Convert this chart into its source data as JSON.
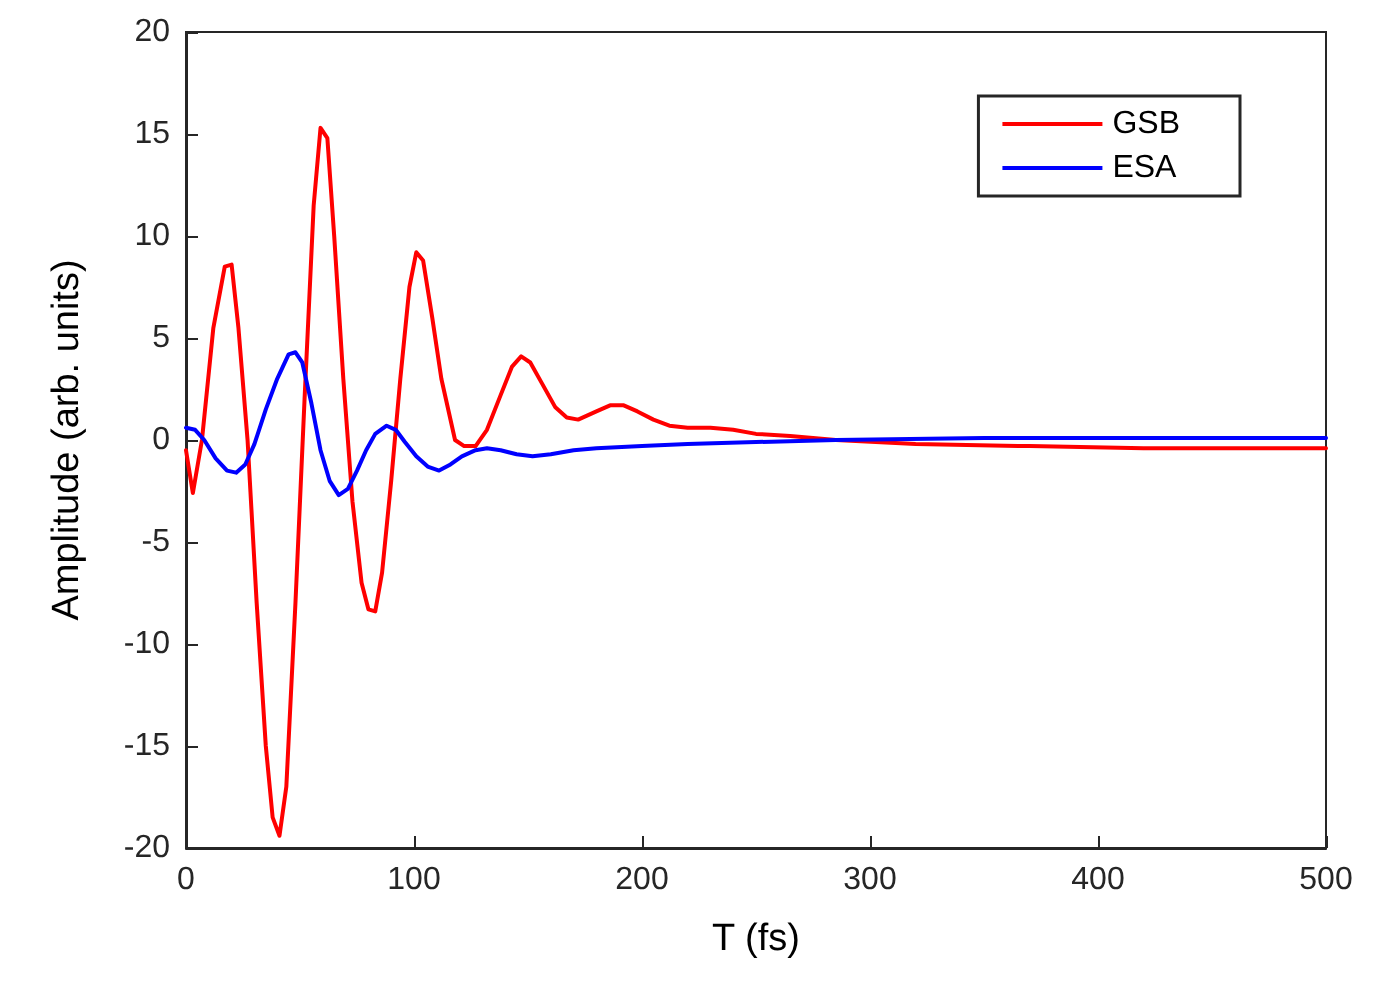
{
  "chart_data": {
    "type": "line",
    "xlabel": "T (fs)",
    "ylabel": "Amplitude (arb. units)",
    "xlim": [
      0,
      500
    ],
    "xticks": [
      0,
      100,
      200,
      300,
      400,
      500
    ],
    "ylim": [
      -20,
      20
    ],
    "yticks": [
      -20,
      -15,
      -10,
      -5,
      0,
      5,
      10,
      15,
      20
    ],
    "grid": false,
    "legend": "top right",
    "marker": "none",
    "line_style": "solid",
    "series": [
      {
        "name": "GSB",
        "color": "#ff0000",
        "x": [
          0,
          3,
          7,
          12,
          17,
          20,
          23,
          27,
          31,
          35,
          38,
          41,
          44,
          48,
          52,
          56,
          59,
          62,
          65,
          69,
          73,
          77,
          80,
          83,
          86,
          90,
          94,
          98,
          101,
          104,
          108,
          112,
          118,
          122,
          127,
          132,
          138,
          143,
          147,
          151,
          156,
          162,
          167,
          172,
          180,
          186,
          192,
          198,
          205,
          212,
          220,
          230,
          240,
          250,
          265,
          285,
          320,
          370,
          420,
          500
        ],
        "values": [
          -0.5,
          -2.6,
          0,
          5.5,
          8.5,
          8.6,
          5.5,
          0,
          -8,
          -15,
          -18.5,
          -19.4,
          -17,
          -8,
          2,
          11.5,
          15.3,
          14.8,
          10,
          3,
          -3,
          -7,
          -8.3,
          -8.4,
          -6.5,
          -2,
          3,
          7.5,
          9.2,
          8.8,
          6,
          3,
          0,
          -0.3,
          -0.3,
          0.5,
          2.2,
          3.6,
          4.1,
          3.8,
          2.8,
          1.6,
          1.1,
          1.0,
          1.4,
          1.7,
          1.7,
          1.4,
          1.0,
          0.7,
          0.6,
          0.6,
          0.5,
          0.3,
          0.2,
          0,
          -0.2,
          -0.3,
          -0.4,
          -0.4
        ]
      },
      {
        "name": "ESA",
        "color": "#0000ff",
        "x": [
          0,
          4,
          8,
          13,
          18,
          22,
          26,
          30,
          35,
          40,
          45,
          48,
          51,
          55,
          59,
          63,
          67,
          71,
          75,
          79,
          83,
          88,
          92,
          96,
          101,
          106,
          111,
          116,
          121,
          127,
          132,
          138,
          145,
          152,
          160,
          170,
          180,
          200,
          220,
          250,
          285,
          350,
          500
        ],
        "values": [
          0.6,
          0.5,
          0,
          -0.9,
          -1.5,
          -1.6,
          -1.2,
          -0.2,
          1.5,
          3,
          4.2,
          4.3,
          3.8,
          1.8,
          -0.5,
          -2.0,
          -2.7,
          -2.4,
          -1.5,
          -0.5,
          0.3,
          0.7,
          0.5,
          -0.1,
          -0.8,
          -1.3,
          -1.5,
          -1.2,
          -0.8,
          -0.5,
          -0.4,
          -0.5,
          -0.7,
          -0.8,
          -0.7,
          -0.5,
          -0.4,
          -0.3,
          -0.2,
          -0.1,
          0,
          0.1,
          0.1
        ]
      }
    ]
  }
}
